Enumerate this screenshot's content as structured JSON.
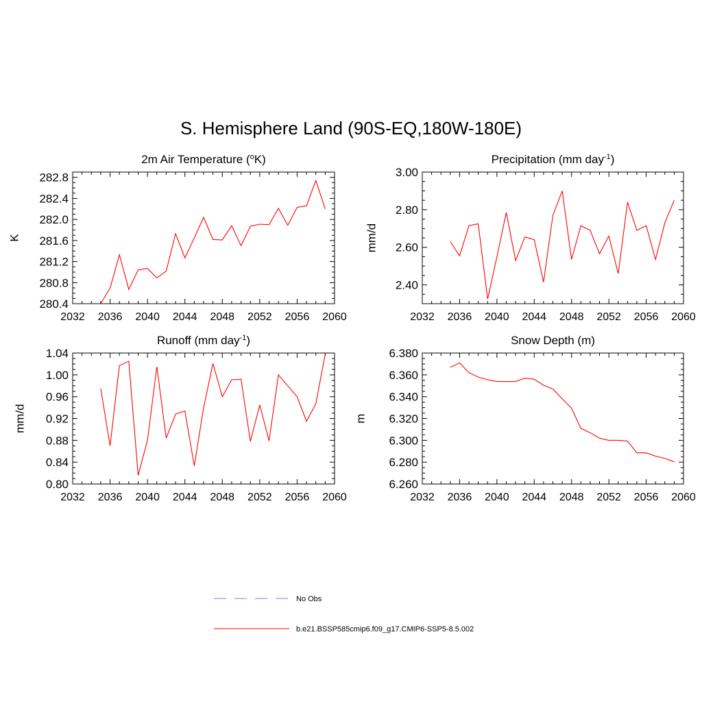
{
  "title": "S. Hemisphere Land (90S-EQ,180W-180E)",
  "chart_data": [
    {
      "type": "line",
      "title_main": "2m Air Temperature (",
      "title_sup": "o",
      "title_end": "K)",
      "ylabel": "K",
      "xlim": [
        2032,
        2060
      ],
      "ylim": [
        280.4,
        282.9
      ],
      "xticks": [
        "2032",
        "2036",
        "2040",
        "2044",
        "2048",
        "2052",
        "2056",
        "2060"
      ],
      "yticks": [
        "280.4",
        "280.8",
        "281.2",
        "281.6",
        "282.0",
        "282.4",
        "282.8"
      ],
      "x": [
        2035,
        2036,
        2037,
        2038,
        2039,
        2040,
        2041,
        2042,
        2043,
        2044,
        2045,
        2046,
        2047,
        2048,
        2049,
        2050,
        2051,
        2052,
        2053,
        2054,
        2055,
        2056,
        2057,
        2058,
        2059
      ],
      "series": [
        {
          "values": [
            280.4,
            280.7,
            281.33,
            280.67,
            281.04,
            281.07,
            280.89,
            281.02,
            281.73,
            281.27,
            281.65,
            282.04,
            281.62,
            281.61,
            281.88,
            281.5,
            281.87,
            281.91,
            281.9,
            282.21,
            281.89,
            282.23,
            282.26,
            282.74,
            282.2
          ],
          "color": "#ff0000"
        }
      ]
    },
    {
      "type": "line",
      "title_main": "Precipitation (mm day",
      "title_sup": "-1",
      "title_end": ")",
      "ylabel": "mm/d",
      "xlim": [
        2032,
        2060
      ],
      "ylim": [
        2.3,
        3.0
      ],
      "xticks": [
        "2032",
        "2036",
        "2040",
        "2044",
        "2048",
        "2052",
        "2056",
        "2060"
      ],
      "yticks": [
        "2.40",
        "2.60",
        "2.80",
        "3.00"
      ],
      "x": [
        2035,
        2036,
        2037,
        2038,
        2039,
        2040,
        2041,
        2042,
        2043,
        2044,
        2045,
        2046,
        2047,
        2048,
        2049,
        2050,
        2051,
        2052,
        2053,
        2054,
        2055,
        2056,
        2057,
        2058,
        2059
      ],
      "series": [
        {
          "values": [
            2.63,
            2.555,
            2.715,
            2.725,
            2.325,
            2.55,
            2.785,
            2.53,
            2.655,
            2.64,
            2.415,
            2.77,
            2.9,
            2.535,
            2.715,
            2.69,
            2.565,
            2.66,
            2.46,
            2.84,
            2.69,
            2.715,
            2.535,
            2.73,
            2.85
          ],
          "color": "#ff0000"
        }
      ]
    },
    {
      "type": "line",
      "title_main": "Runoff (mm day",
      "title_sup": "-1",
      "title_end": ")",
      "ylabel": "mm/d",
      "xlim": [
        2032,
        2060
      ],
      "ylim": [
        0.8,
        1.04
      ],
      "xticks": [
        "2032",
        "2036",
        "2040",
        "2044",
        "2048",
        "2052",
        "2056",
        "2060"
      ],
      "yticks": [
        "0.80",
        "0.84",
        "0.88",
        "0.92",
        "0.96",
        "1.00",
        "1.04"
      ],
      "x": [
        2035,
        2036,
        2037,
        2038,
        2039,
        2040,
        2041,
        2042,
        2043,
        2044,
        2045,
        2046,
        2047,
        2048,
        2049,
        2050,
        2051,
        2052,
        2053,
        2054,
        2055,
        2056,
        2057,
        2058,
        2059
      ],
      "series": [
        {
          "values": [
            0.975,
            0.87,
            1.017,
            1.025,
            0.816,
            0.88,
            1.015,
            0.884,
            0.928,
            0.934,
            0.833,
            0.94,
            1.021,
            0.96,
            0.991,
            0.992,
            0.878,
            0.945,
            0.879,
            1.0,
            0.98,
            0.96,
            0.915,
            0.947,
            1.038
          ],
          "color": "#ff0000"
        }
      ]
    },
    {
      "type": "line",
      "title_main": "Snow Depth (m)",
      "title_sup": "",
      "title_end": "",
      "ylabel": "m",
      "xlim": [
        2032,
        2060
      ],
      "ylim": [
        6.26,
        6.38
      ],
      "xticks": [
        "2032",
        "2036",
        "2040",
        "2044",
        "2048",
        "2052",
        "2056",
        "2060"
      ],
      "yticks": [
        "6.260",
        "6.280",
        "6.300",
        "6.320",
        "6.340",
        "6.360",
        "6.380"
      ],
      "x": [
        2035,
        2036,
        2037,
        2038,
        2039,
        2040,
        2041,
        2042,
        2043,
        2044,
        2045,
        2046,
        2047,
        2048,
        2049,
        2050,
        2051,
        2052,
        2053,
        2054,
        2055,
        2056,
        2057,
        2058,
        2059
      ],
      "series": [
        {
          "values": [
            6.367,
            6.371,
            6.362,
            6.358,
            6.3555,
            6.354,
            6.3538,
            6.354,
            6.357,
            6.356,
            6.3505,
            6.347,
            6.338,
            6.3295,
            6.311,
            6.307,
            6.302,
            6.3,
            6.3,
            6.2993,
            6.2885,
            6.2885,
            6.2855,
            6.2835,
            6.2803
          ],
          "color": "#ff0000"
        }
      ]
    }
  ],
  "legend": [
    {
      "label": "No Obs",
      "style": "dashed",
      "color": "#9999ff"
    },
    {
      "label": "b.e21.BSSP585cmip6.f09_g17.CMIP6-SSP5-8.5.002",
      "style": "solid",
      "color": "#ff0000"
    }
  ]
}
